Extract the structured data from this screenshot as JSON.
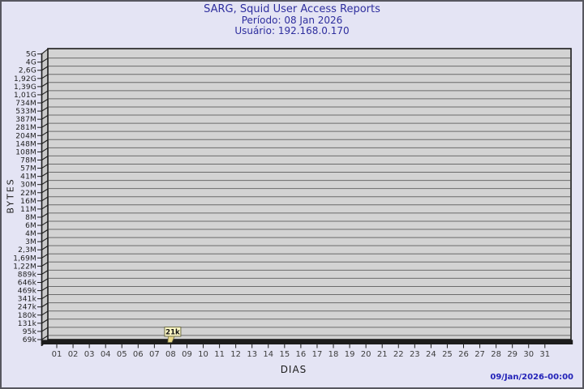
{
  "header": {
    "title": "SARG, Squid User Access Reports",
    "period": "Período: 08 Jan 2026",
    "user": "Usuário: 192.168.0.170"
  },
  "chart_data": {
    "type": "line",
    "title": "SARG, Squid User Access Reports",
    "subtitle": "Período: 08 Jan 2026",
    "user": "Usuário: 192.168.0.170",
    "xlabel": "DIAS",
    "ylabel": "BYTES",
    "y_scale": "log",
    "y_range": [
      "69k",
      "5G"
    ],
    "y_ticks": [
      "5G",
      "4G",
      "2,6G",
      "1,92G",
      "1,39G",
      "1,01G",
      "734M",
      "533M",
      "387M",
      "281M",
      "204M",
      "148M",
      "108M",
      "78M",
      "57M",
      "41M",
      "30M",
      "22M",
      "16M",
      "11M",
      "8M",
      "6M",
      "4M",
      "3M",
      "2,3M",
      "1,69M",
      "1,22M",
      "889k",
      "646k",
      "469k",
      "341k",
      "247k",
      "180k",
      "131k",
      "95k",
      "69k"
    ],
    "x_ticks": [
      "01",
      "02",
      "03",
      "04",
      "05",
      "06",
      "07",
      "08",
      "09",
      "10",
      "11",
      "12",
      "13",
      "14",
      "15",
      "16",
      "17",
      "18",
      "19",
      "20",
      "21",
      "22",
      "23",
      "24",
      "25",
      "26",
      "27",
      "28",
      "29",
      "30",
      "31"
    ],
    "points": [
      {
        "day": "08",
        "label": "21k",
        "bytes_approx": 21000
      }
    ],
    "grid": true,
    "legend": "none"
  },
  "footer": {
    "generated": "09/Jan/2026-00:00"
  },
  "colors": {
    "background": "#e4e4f4",
    "border": "#57575f",
    "title_text": "#2e2e9e",
    "plot_fill": "#d3d3d3",
    "plot_wall": "#c9c9c9",
    "grid_line": "#6b6b6b",
    "axis_line": "#1c1c1c",
    "y_tick_text": "#1c1c1c",
    "x_tick_text": "#3c3c3c",
    "tag_fill": "#faf5c3",
    "tag_border": "#6d6d49",
    "tag_tail": "#ead989",
    "timestamp_text": "#2222b8"
  }
}
